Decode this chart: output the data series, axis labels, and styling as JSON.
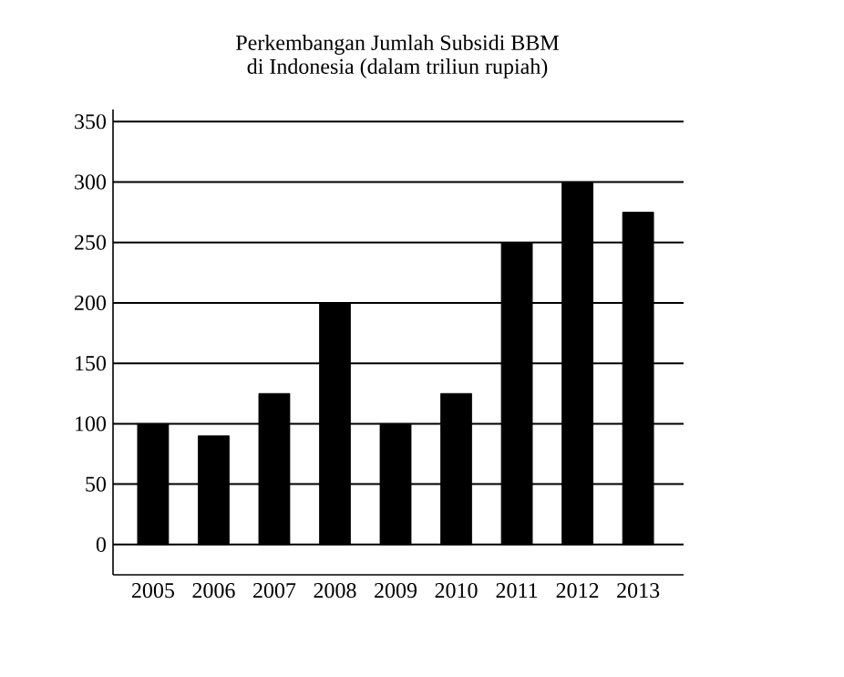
{
  "chart_data": {
    "type": "bar",
    "title": "Perkembangan Jumlah Subsidi BBM\ndi Indonesia (dalam triliun rupiah)",
    "categories": [
      "2005",
      "2006",
      "2007",
      "2008",
      "2009",
      "2010",
      "2011",
      "2012",
      "2013"
    ],
    "values": [
      100,
      90,
      125,
      200,
      100,
      125,
      250,
      300,
      275
    ],
    "color": "#000000",
    "ylim": [
      -25,
      360
    ],
    "yticks": [
      0,
      50,
      100,
      150,
      200,
      250,
      300,
      350
    ],
    "grid": "y"
  }
}
